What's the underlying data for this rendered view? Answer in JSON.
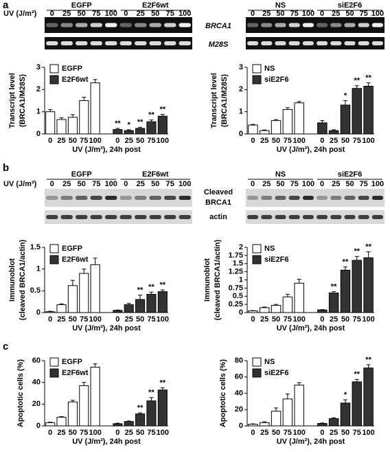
{
  "figure": {
    "panels": [
      "a",
      "b",
      "c"
    ],
    "blots": [
      {
        "uv_label": "UV (J/m²)",
        "groups": [
          "EGFP",
          "E2F6wt"
        ],
        "doses": [
          "0",
          "25",
          "50",
          "75",
          "100"
        ],
        "kind": "pcr"
      },
      {
        "groups": [
          "NS",
          "siE2F6"
        ],
        "doses": [
          "0",
          "25",
          "50",
          "75",
          "100"
        ],
        "kind": "pcr"
      },
      {
        "uv_label": "UV (J/m²)",
        "groups": [
          "EGFP",
          "E2F6wt"
        ],
        "doses": [
          "0",
          "25",
          "50",
          "75",
          "100"
        ],
        "kind": "western"
      },
      {
        "groups": [
          "NS",
          "siE2F6"
        ],
        "doses": [
          "0",
          "25",
          "50",
          "75",
          "100"
        ],
        "kind": "western"
      }
    ],
    "band_labels_a": [
      "BRCA1",
      "M28S"
    ],
    "band_labels_b": [
      "Cleaved",
      "BRCA1",
      "actin"
    ]
  },
  "chart_data": [
    {
      "type": "bar",
      "ylabel": [
        "Transcript level",
        "(BRCA1/M28S)"
      ],
      "xlabel": "UV (J/m²), 24h post",
      "categories": [
        "0",
        "25",
        "50",
        "75",
        "100",
        "0",
        "25",
        "50",
        "75",
        "100"
      ],
      "ylim": [
        0,
        3
      ],
      "yticks": [
        0,
        1,
        2,
        3
      ],
      "legend": "upper left",
      "series": [
        {
          "name": "EGFP",
          "color": "#ffffff",
          "values": [
            1.0,
            0.65,
            0.75,
            1.5,
            2.3,
            null,
            null,
            null,
            null,
            null
          ],
          "errors": [
            0.1,
            0.08,
            0.12,
            0.15,
            0.15,
            null,
            null,
            null,
            null,
            null
          ],
          "marks": [
            null,
            null,
            null,
            null,
            null,
            null,
            null,
            null,
            null,
            null
          ]
        },
        {
          "name": "E2F6wt",
          "color": "#333333",
          "values": [
            null,
            null,
            null,
            null,
            null,
            0.2,
            0.15,
            0.25,
            0.55,
            0.8
          ],
          "errors": [
            null,
            null,
            null,
            null,
            null,
            0.05,
            0.04,
            0.05,
            0.08,
            0.08
          ],
          "marks": [
            null,
            null,
            null,
            null,
            null,
            "**",
            "*",
            "**",
            "**",
            "**"
          ]
        }
      ]
    },
    {
      "type": "bar",
      "ylabel": [
        "Transcript level",
        "(BRCA1/M28S)"
      ],
      "xlabel": "UV (J/m²), 24h post",
      "categories": [
        "0",
        "25",
        "50",
        "75",
        "100",
        "0",
        "25",
        "50",
        "75",
        "100"
      ],
      "ylim": [
        0,
        3
      ],
      "yticks": [
        0,
        1,
        2,
        3
      ],
      "legend": "upper left",
      "series": [
        {
          "name": "NS",
          "color": "#ffffff",
          "values": [
            0.4,
            0.15,
            0.6,
            1.1,
            1.4,
            null,
            null,
            null,
            null,
            null
          ],
          "errors": [
            0.03,
            0.03,
            0.05,
            0.08,
            0.06,
            null,
            null,
            null,
            null,
            null
          ],
          "marks": [
            null,
            null,
            null,
            null,
            null,
            null,
            null,
            null,
            null,
            null
          ]
        },
        {
          "name": "siE2F6",
          "color": "#333333",
          "values": [
            null,
            null,
            null,
            null,
            null,
            0.5,
            0.15,
            1.3,
            2.05,
            2.15
          ],
          "errors": [
            null,
            null,
            null,
            null,
            null,
            0.1,
            0.04,
            0.2,
            0.12,
            0.15
          ],
          "marks": [
            null,
            null,
            null,
            null,
            null,
            null,
            null,
            "*",
            "**",
            "**"
          ]
        }
      ]
    },
    {
      "type": "bar",
      "ylabel": [
        "Immunoblot",
        "(cleaved BRCA1/actin)"
      ],
      "xlabel": "UV (J/m²), 24h post",
      "categories": [
        "0",
        "25",
        "50",
        "75",
        "100",
        "0",
        "25",
        "50",
        "75",
        "100"
      ],
      "ylim": [
        0,
        1.5
      ],
      "yticks": [
        0,
        0.5,
        1,
        1.5
      ],
      "legend": "upper left",
      "series": [
        {
          "name": "EGFP",
          "color": "#ffffff",
          "values": [
            0.02,
            0.18,
            0.62,
            0.9,
            1.1,
            null,
            null,
            null,
            null,
            null
          ],
          "errors": [
            0.01,
            0.02,
            0.12,
            0.1,
            0.15,
            null,
            null,
            null,
            null,
            null
          ],
          "marks": [
            null,
            null,
            null,
            null,
            null,
            null,
            null,
            null,
            null,
            null
          ]
        },
        {
          "name": "E2F6wt",
          "color": "#333333",
          "values": [
            null,
            null,
            null,
            null,
            null,
            0.05,
            0.18,
            0.3,
            0.42,
            0.48
          ],
          "errors": [
            null,
            null,
            null,
            null,
            null,
            0.01,
            0.03,
            0.1,
            0.05,
            0.04
          ],
          "marks": [
            null,
            null,
            null,
            null,
            null,
            null,
            null,
            "**",
            "**",
            "**"
          ]
        }
      ]
    },
    {
      "type": "bar",
      "ylabel": [
        "Immunoblot",
        "(cleaved BRCA1/actin)"
      ],
      "xlabel": "UV (J/m²), 24h post",
      "categories": [
        "0",
        "25",
        "50",
        "75",
        "100",
        "0",
        "25",
        "50",
        "75",
        "100"
      ],
      "ylim": [
        0,
        2
      ],
      "yticks": [
        0,
        0.25,
        0.5,
        0.75,
        1,
        1.25,
        1.5,
        1.75,
        2
      ],
      "legend": "upper left",
      "series": [
        {
          "name": "NS",
          "color": "#ffffff",
          "values": [
            0.05,
            0.15,
            0.22,
            0.48,
            0.9,
            null,
            null,
            null,
            null,
            null
          ],
          "errors": [
            0.01,
            0.02,
            0.03,
            0.08,
            0.12,
            null,
            null,
            null,
            null,
            null
          ],
          "marks": [
            null,
            null,
            null,
            null,
            null,
            null,
            null,
            null,
            null,
            null
          ]
        },
        {
          "name": "siE2F6",
          "color": "#333333",
          "values": [
            null,
            null,
            null,
            null,
            null,
            0.08,
            0.6,
            1.3,
            1.6,
            1.68
          ],
          "errors": [
            null,
            null,
            null,
            null,
            null,
            0.01,
            0.04,
            0.1,
            0.12,
            0.18
          ],
          "marks": [
            null,
            null,
            null,
            null,
            null,
            null,
            "**",
            "**",
            "**",
            "**"
          ]
        }
      ]
    },
    {
      "type": "bar",
      "ylabel": [
        "Apoptotic cells (%)"
      ],
      "xlabel": "UV (J/m²), 24h post",
      "categories": [
        "0",
        "25",
        "50",
        "75",
        "100",
        "0",
        "25",
        "50",
        "75",
        "100"
      ],
      "ylim": [
        0,
        60
      ],
      "yticks": [
        0,
        20,
        40,
        60
      ],
      "legend": "upper left",
      "series": [
        {
          "name": "EGFP",
          "color": "#ffffff",
          "values": [
            3,
            8,
            22,
            37,
            54,
            null,
            null,
            null,
            null,
            null
          ],
          "errors": [
            0.5,
            0.5,
            1.5,
            3,
            3,
            null,
            null,
            null,
            null,
            null
          ],
          "marks": [
            null,
            null,
            null,
            null,
            null,
            null,
            null,
            null,
            null,
            null
          ]
        },
        {
          "name": "E2F6wt",
          "color": "#333333",
          "values": [
            null,
            null,
            null,
            null,
            null,
            2,
            4,
            11,
            23,
            33
          ],
          "errors": [
            null,
            null,
            null,
            null,
            null,
            0.5,
            0.5,
            1,
            3,
            2
          ],
          "marks": [
            null,
            null,
            null,
            null,
            null,
            null,
            null,
            "**",
            "**",
            "**"
          ]
        }
      ]
    },
    {
      "type": "bar",
      "ylabel": [
        "Apoptotic cells (%)"
      ],
      "xlabel": "UV (J/m²), 24h post",
      "categories": [
        "0",
        "25",
        "50",
        "75",
        "100",
        "0",
        "25",
        "50",
        "75",
        "100"
      ],
      "ylim": [
        0,
        80
      ],
      "yticks": [
        0,
        20,
        40,
        60,
        80
      ],
      "legend": "upper left",
      "series": [
        {
          "name": "NS",
          "color": "#ffffff",
          "values": [
            2,
            4,
            18,
            33,
            50,
            null,
            null,
            null,
            null,
            null
          ],
          "errors": [
            0.5,
            1,
            4,
            6,
            3,
            null,
            null,
            null,
            null,
            null
          ],
          "marks": [
            null,
            null,
            null,
            null,
            null,
            null,
            null,
            null,
            null,
            null
          ]
        },
        {
          "name": "siE2F6",
          "color": "#333333",
          "values": [
            null,
            null,
            null,
            null,
            null,
            3,
            9,
            28,
            54,
            71
          ],
          "errors": [
            null,
            null,
            null,
            null,
            null,
            0.5,
            1,
            4,
            3,
            4
          ],
          "marks": [
            null,
            null,
            null,
            null,
            null,
            null,
            null,
            "*",
            "**",
            "**"
          ]
        }
      ]
    }
  ]
}
